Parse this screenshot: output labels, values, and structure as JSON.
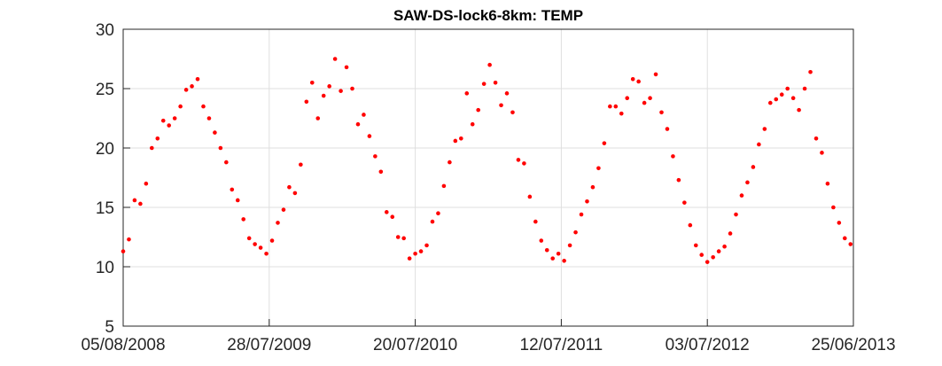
{
  "chart_data": {
    "type": "scatter",
    "title": "SAW-DS-lock6-8km: TEMP",
    "color": "#ff0000",
    "grid": true,
    "xlim": [
      "2008-08-05",
      "2013-06-25"
    ],
    "ylim": [
      5,
      30
    ],
    "yticks": [
      5,
      10,
      15,
      20,
      25,
      30
    ],
    "xticks": [
      {
        "value": "2008-08-05",
        "label": "05/08/2008"
      },
      {
        "value": "2009-07-28",
        "label": "28/07/2009"
      },
      {
        "value": "2010-07-20",
        "label": "20/07/2010"
      },
      {
        "value": "2011-07-12",
        "label": "12/07/2011"
      },
      {
        "value": "2012-07-03",
        "label": "03/07/2012"
      },
      {
        "value": "2013-06-25",
        "label": "25/06/2013"
      }
    ],
    "x": [
      "2008-08-05",
      "2008-08-19",
      "2008-09-02",
      "2008-09-16",
      "2008-09-30",
      "2008-10-14",
      "2008-10-28",
      "2008-11-11",
      "2008-11-25",
      "2008-12-09",
      "2008-12-23",
      "2009-01-06",
      "2009-01-20",
      "2009-02-03",
      "2009-02-17",
      "2009-03-03",
      "2009-03-17",
      "2009-03-31",
      "2009-04-14",
      "2009-04-28",
      "2009-05-12",
      "2009-05-26",
      "2009-06-09",
      "2009-06-23",
      "2009-07-07",
      "2009-07-21",
      "2009-08-04",
      "2009-08-18",
      "2009-09-01",
      "2009-09-15",
      "2009-09-29",
      "2009-10-13",
      "2009-10-27",
      "2009-11-10",
      "2009-11-24",
      "2009-12-08",
      "2009-12-22",
      "2010-01-05",
      "2010-01-19",
      "2010-02-02",
      "2010-02-16",
      "2010-03-02",
      "2010-03-16",
      "2010-03-30",
      "2010-04-13",
      "2010-04-27",
      "2010-05-11",
      "2010-05-25",
      "2010-06-08",
      "2010-06-22",
      "2010-07-06",
      "2010-07-20",
      "2010-08-03",
      "2010-08-17",
      "2010-08-31",
      "2010-09-14",
      "2010-09-28",
      "2010-10-12",
      "2010-10-26",
      "2010-11-09",
      "2010-11-23",
      "2010-12-07",
      "2010-12-21",
      "2011-01-04",
      "2011-01-18",
      "2011-02-01",
      "2011-02-15",
      "2011-03-01",
      "2011-03-15",
      "2011-03-29",
      "2011-04-12",
      "2011-04-26",
      "2011-05-10",
      "2011-05-24",
      "2011-06-07",
      "2011-06-21",
      "2011-07-05",
      "2011-07-19",
      "2011-08-02",
      "2011-08-16",
      "2011-08-30",
      "2011-09-13",
      "2011-09-27",
      "2011-10-11",
      "2011-10-25",
      "2011-11-08",
      "2011-11-22",
      "2011-12-06",
      "2011-12-20",
      "2012-01-03",
      "2012-01-17",
      "2012-01-31",
      "2012-02-14",
      "2012-02-28",
      "2012-03-13",
      "2012-03-27",
      "2012-04-10",
      "2012-04-24",
      "2012-05-08",
      "2012-05-22",
      "2012-06-05",
      "2012-06-19",
      "2012-07-03",
      "2012-07-17",
      "2012-07-31",
      "2012-08-14",
      "2012-08-28",
      "2012-09-11",
      "2012-09-25",
      "2012-10-09",
      "2012-10-23",
      "2012-11-06",
      "2012-11-20",
      "2012-12-04",
      "2012-12-18",
      "2013-01-01",
      "2013-01-15",
      "2013-01-29",
      "2013-02-12",
      "2013-02-26",
      "2013-03-12",
      "2013-03-26",
      "2013-04-09",
      "2013-04-23",
      "2013-05-07",
      "2013-05-21",
      "2013-06-04",
      "2013-06-18"
    ],
    "values": [
      11.3,
      12.3,
      15.6,
      15.3,
      17,
      20,
      20.8,
      22.3,
      21.9,
      22.5,
      23.5,
      24.9,
      25.2,
      25.8,
      23.5,
      22.5,
      21.3,
      20,
      18.8,
      16.5,
      15.6,
      14,
      12.4,
      11.9,
      11.6,
      11.1,
      12.2,
      13.7,
      14.8,
      16.7,
      16.2,
      18.6,
      23.9,
      25.5,
      22.5,
      24.4,
      25.2,
      27.5,
      24.8,
      26.8,
      25,
      22,
      22.8,
      21,
      19.3,
      18,
      14.6,
      14.2,
      12.5,
      12.4,
      10.7,
      11.1,
      11.3,
      11.8,
      13.8,
      14.5,
      16.8,
      18.8,
      20.6,
      20.8,
      24.6,
      22,
      23.2,
      25.4,
      27,
      25.5,
      23.6,
      24.6,
      23,
      19,
      18.7,
      15.9,
      13.8,
      12.2,
      11.4,
      10.7,
      11.1,
      10.5,
      11.8,
      12.9,
      14.4,
      15.5,
      16.7,
      18.3,
      20.4,
      23.5,
      23.5,
      22.9,
      24.2,
      25.8,
      25.6,
      23.8,
      24.2,
      26.2,
      23,
      21.6,
      19.3,
      17.3,
      15.4,
      13.5,
      11.8,
      11,
      10.4,
      10.8,
      11.3,
      11.7,
      12.8,
      14.4,
      16,
      17.1,
      18.4,
      20.3,
      21.6,
      23.8,
      24.1,
      24.5,
      25,
      24.2,
      23.2,
      25,
      26.4,
      20.8,
      19.6,
      17,
      15,
      13.7,
      12.4,
      11.9
    ]
  }
}
